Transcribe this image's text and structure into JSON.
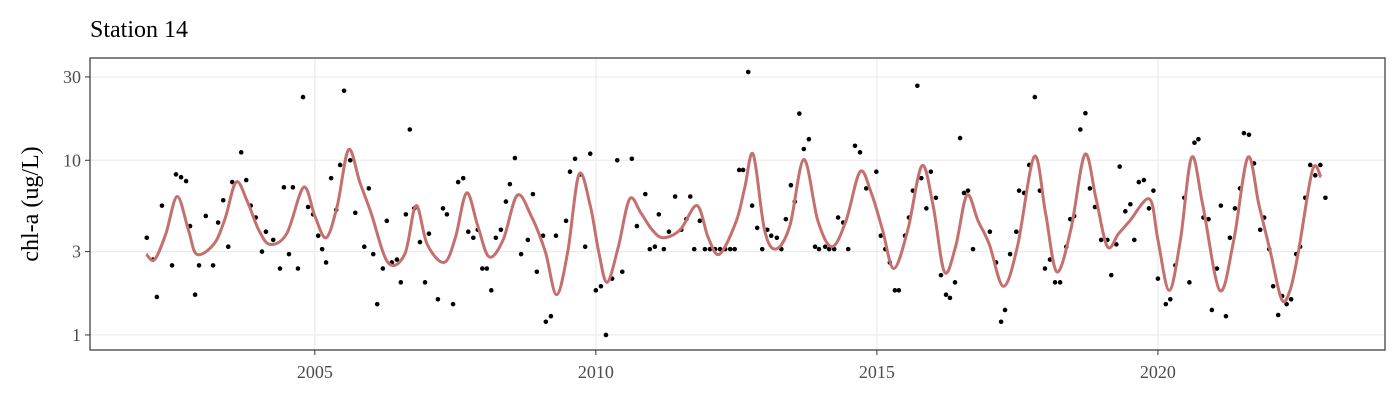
{
  "chart_data": {
    "type": "scatter",
    "title": "Station 14",
    "y_label": "chl-a (ug/L)",
    "xlim": [
      2001.0,
      2024.04
    ],
    "ylim": [
      0.82,
      38.5
    ],
    "xticks": [
      2005,
      2010,
      2015,
      2020
    ],
    "yticks": [
      1,
      3,
      10,
      30
    ],
    "log_y": true,
    "grid": true,
    "series": [
      {
        "type": "scatter",
        "color": "#000000",
        "x": [
          2002.01,
          2002.12,
          2002.19,
          2002.28,
          2002.46,
          2002.53,
          2002.62,
          2002.71,
          2002.78,
          2002.87,
          2002.94,
          2003.06,
          2003.19,
          2003.28,
          2003.37,
          2003.46,
          2003.53,
          2003.69,
          2003.78,
          2003.86,
          2003.95,
          2004.06,
          2004.13,
          2004.26,
          2004.38,
          2004.45,
          2004.54,
          2004.61,
          2004.7,
          2004.79,
          2004.88,
          2004.97,
          2005.06,
          2005.13,
          2005.2,
          2005.29,
          2005.38,
          2005.45,
          2005.52,
          2005.63,
          2005.72,
          2005.88,
          2005.96,
          2006.04,
          2006.11,
          2006.21,
          2006.28,
          2006.37,
          2006.46,
          2006.53,
          2006.62,
          2006.69,
          2006.77,
          2006.87,
          2006.96,
          2007.03,
          2007.19,
          2007.28,
          2007.35,
          2007.46,
          2007.55,
          2007.64,
          2007.73,
          2007.82,
          2007.9,
          2007.98,
          2008.06,
          2008.14,
          2008.22,
          2008.31,
          2008.4,
          2008.47,
          2008.56,
          2008.67,
          2008.79,
          2008.88,
          2008.95,
          2009.06,
          2009.11,
          2009.2,
          2009.29,
          2009.47,
          2009.54,
          2009.63,
          2009.72,
          2009.81,
          2009.9,
          2010.0,
          2010.09,
          2010.18,
          2010.29,
          2010.38,
          2010.47,
          2010.64,
          2010.73,
          2010.88,
          2010.96,
          2011.05,
          2011.12,
          2011.21,
          2011.3,
          2011.41,
          2011.52,
          2011.61,
          2011.68,
          2011.75,
          2011.85,
          2011.94,
          2012.03,
          2012.12,
          2012.21,
          2012.3,
          2012.39,
          2012.47,
          2012.55,
          2012.62,
          2012.71,
          2012.78,
          2012.87,
          2012.96,
          2013.05,
          2013.12,
          2013.22,
          2013.3,
          2013.38,
          2013.47,
          2013.54,
          2013.62,
          2013.7,
          2013.79,
          2013.9,
          2013.97,
          2014.08,
          2014.15,
          2014.24,
          2014.31,
          2014.4,
          2014.49,
          2014.61,
          2014.7,
          2014.81,
          2014.99,
          2015.07,
          2015.15,
          2015.23,
          2015.32,
          2015.39,
          2015.5,
          2015.57,
          2015.64,
          2015.72,
          2015.79,
          2015.88,
          2015.96,
          2016.05,
          2016.14,
          2016.23,
          2016.3,
          2016.39,
          2016.48,
          2016.55,
          2016.62,
          2016.71,
          2017.01,
          2017.12,
          2017.21,
          2017.28,
          2017.37,
          2017.48,
          2017.53,
          2017.62,
          2017.71,
          2017.81,
          2017.9,
          2017.99,
          2018.08,
          2018.17,
          2018.26,
          2018.37,
          2018.44,
          2018.51,
          2018.62,
          2018.71,
          2018.79,
          2018.88,
          2018.99,
          2019.1,
          2019.17,
          2019.26,
          2019.32,
          2019.42,
          2019.51,
          2019.58,
          2019.66,
          2019.75,
          2019.84,
          2019.92,
          2020.0,
          2020.14,
          2020.22,
          2020.31,
          2020.47,
          2020.56,
          2020.65,
          2020.72,
          2020.81,
          2020.9,
          2020.96,
          2021.05,
          2021.12,
          2021.21,
          2021.28,
          2021.37,
          2021.46,
          2021.53,
          2021.62,
          2021.71,
          2021.82,
          2021.89,
          2021.98,
          2022.05,
          2022.14,
          2022.21,
          2022.29,
          2022.37,
          2022.46,
          2022.53,
          2022.62,
          2022.71,
          2022.8,
          2022.89,
          2022.98
        ],
        "values": [
          3.6,
          2.7,
          1.65,
          5.5,
          2.5,
          8.3,
          8.0,
          7.6,
          4.2,
          1.7,
          2.5,
          4.8,
          2.5,
          4.4,
          5.9,
          3.2,
          7.5,
          11.1,
          7.7,
          5.5,
          4.7,
          3.0,
          3.9,
          3.5,
          2.4,
          7.0,
          2.9,
          7.0,
          2.4,
          23,
          5.4,
          4.9,
          3.7,
          3.1,
          2.6,
          7.9,
          5.2,
          9.4,
          25,
          10,
          5.0,
          3.2,
          6.9,
          2.9,
          1.5,
          2.4,
          4.5,
          2.6,
          2.7,
          2.0,
          4.9,
          15,
          5.3,
          3.4,
          2.0,
          3.8,
          1.6,
          5.3,
          4.9,
          1.5,
          7.5,
          7.9,
          3.9,
          3.6,
          4.0,
          2.4,
          2.4,
          1.8,
          3.6,
          4.0,
          5.8,
          7.3,
          10.3,
          2.9,
          3.5,
          6.4,
          2.3,
          3.7,
          1.19,
          1.28,
          3.7,
          4.5,
          8.6,
          10.2,
          8.3,
          3.2,
          10.9,
          1.8,
          1.9,
          1.0,
          2.1,
          10,
          2.3,
          10.2,
          4.2,
          6.4,
          3.1,
          3.2,
          4.9,
          3.1,
          3.9,
          6.2,
          4.0,
          4.6,
          6.2,
          3.1,
          4.5,
          3.1,
          3.1,
          3.1,
          3.1,
          3.1,
          3.1,
          3.1,
          8.8,
          8.8,
          32,
          5.5,
          4.1,
          3.1,
          4.0,
          3.7,
          3.6,
          3.1,
          4.6,
          7.2,
          5.8,
          18.5,
          11.6,
          13.2,
          3.2,
          3.1,
          3.2,
          3.1,
          3.1,
          4.7,
          4.4,
          3.1,
          12.1,
          11.1,
          6.9,
          8.6,
          3.7,
          3.1,
          2.6,
          1.8,
          1.8,
          3.7,
          4.7,
          6.7,
          26.7,
          7.9,
          5.3,
          8.6,
          6.1,
          2.2,
          1.7,
          1.63,
          2.0,
          13.4,
          6.5,
          6.7,
          3.1,
          3.9,
          2.6,
          1.19,
          1.39,
          2.9,
          3.9,
          6.7,
          6.5,
          9.4,
          23,
          6.7,
          2.4,
          2.7,
          2.0,
          2.0,
          3.2,
          4.6,
          4.8,
          15,
          18.6,
          6.9,
          5.4,
          3.5,
          3.5,
          2.2,
          3.3,
          9.2,
          5.1,
          5.6,
          3.5,
          7.5,
          7.7,
          5.3,
          6.7,
          2.1,
          1.5,
          1.6,
          2.5,
          6.1,
          2.0,
          12.6,
          13.2,
          4.7,
          4.6,
          1.39,
          2.4,
          5.5,
          1.28,
          3.6,
          5.3,
          6.9,
          14.3,
          14,
          9.6,
          4.0,
          4.7,
          3.1,
          1.9,
          1.3,
          1.67,
          1.5,
          1.6,
          2.9,
          3.2,
          6.1,
          9.4,
          8.2,
          9.4,
          6.1
        ]
      },
      {
        "type": "line",
        "color": "#c4706e",
        "x": [
          2002.0,
          2002.15,
          2002.35,
          2002.55,
          2002.75,
          2002.9,
          2003.2,
          2003.4,
          2003.6,
          2003.8,
          2004.0,
          2004.2,
          2004.5,
          2004.8,
          2005.0,
          2005.2,
          2005.4,
          2005.6,
          2005.8,
          2006.0,
          2006.3,
          2006.6,
          2006.8,
          2007.0,
          2007.3,
          2007.5,
          2007.7,
          2007.9,
          2008.1,
          2008.35,
          2008.6,
          2008.85,
          2009.1,
          2009.3,
          2009.5,
          2009.7,
          2009.9,
          2010.05,
          2010.2,
          2010.4,
          2010.6,
          2010.8,
          2011.0,
          2011.2,
          2011.5,
          2011.8,
          2012.0,
          2012.2,
          2012.5,
          2012.65,
          2012.8,
          2013.0,
          2013.2,
          2013.45,
          2013.7,
          2013.95,
          2014.2,
          2014.45,
          2014.7,
          2014.9,
          2015.1,
          2015.3,
          2015.55,
          2015.8,
          2016.0,
          2016.2,
          2016.4,
          2016.6,
          2016.8,
          2017.0,
          2017.25,
          2017.5,
          2017.8,
          2018.0,
          2018.2,
          2018.45,
          2018.7,
          2018.9,
          2019.1,
          2019.3,
          2019.5,
          2019.85,
          2020.0,
          2020.2,
          2020.4,
          2020.6,
          2020.8,
          2021.1,
          2021.35,
          2021.6,
          2021.8,
          2022.0,
          2022.2,
          2022.35,
          2022.5,
          2022.75,
          2022.9
        ],
        "values": [
          2.9,
          2.7,
          3.8,
          6.2,
          4.0,
          2.9,
          3.3,
          4.6,
          7.5,
          5.8,
          4.0,
          3.3,
          3.8,
          7.0,
          4.8,
          3.6,
          5.5,
          11.5,
          7.5,
          5.0,
          2.6,
          2.9,
          5.5,
          3.3,
          2.6,
          3.6,
          6.5,
          4.2,
          2.8,
          3.5,
          6.3,
          4.8,
          3.0,
          1.7,
          3.0,
          8.3,
          5.5,
          3.0,
          2.0,
          3.2,
          6.0,
          5.0,
          4.0,
          3.6,
          4.0,
          5.5,
          3.6,
          2.9,
          4.5,
          7.0,
          10.8,
          4.0,
          3.1,
          4.2,
          10.1,
          4.5,
          3.2,
          4.5,
          8.6,
          6.5,
          4.0,
          2.4,
          4.0,
          9.3,
          5.5,
          2.3,
          3.2,
          6.3,
          4.5,
          3.3,
          1.9,
          3.2,
          10.5,
          5.0,
          2.3,
          4.0,
          10.8,
          6.0,
          3.2,
          3.8,
          4.5,
          6.0,
          3.5,
          1.8,
          3.5,
          10.4,
          5.5,
          1.8,
          3.5,
          10.4,
          5.5,
          3.0,
          1.6,
          1.8,
          3.0,
          8.8,
          8.0
        ]
      }
    ]
  }
}
